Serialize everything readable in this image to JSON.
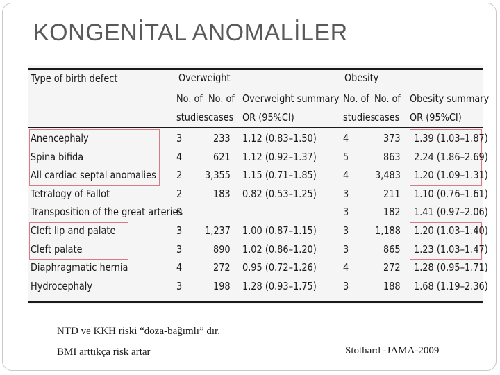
{
  "slide": {
    "title": "KONGENİTAL ANOMALİLER",
    "notes": [
      "NTD ve KKH riski “doza-bağımlı” dır.",
      "BMI arttıkça risk artar"
    ],
    "reference": "Stothard -JAMA-2009"
  },
  "table": {
    "header": {
      "type_label": "Type of birth defect",
      "group_overweight": "Overweight",
      "group_obesity": "Obesity",
      "ow_studies": [
        "No. of",
        "studies"
      ],
      "ow_cases": [
        "No. of",
        "cases"
      ],
      "ow_summary": [
        "Overweight summary",
        "OR (95%CI)"
      ],
      "ob_studies": [
        "No. of",
        "studies"
      ],
      "ob_cases": [
        "No. of",
        "cases"
      ],
      "ob_summary": [
        "Obesity summary",
        "OR (95%CI)"
      ]
    },
    "rows": [
      {
        "defect": "Anencephaly",
        "ow_studies": "3",
        "ow_cases": "233",
        "ow_or": "1.12 (0.83–1.50)",
        "ob_studies": "4",
        "ob_cases": "373",
        "ob_or": "1.39 (1.03–1.87)"
      },
      {
        "defect": "Spina bifida",
        "ow_studies": "4",
        "ow_cases": "621",
        "ow_or": "1.12 (0.92–1.37)",
        "ob_studies": "5",
        "ob_cases": "863",
        "ob_or": "2.24 (1.86–2.69)"
      },
      {
        "defect": "All cardiac septal anomalies",
        "ow_studies": "2",
        "ow_cases": "3,355",
        "ow_or": "1.15 (0.71–1.85)",
        "ob_studies": "4",
        "ob_cases": "3,483",
        "ob_or": "1.20 (1.09–1.31)"
      },
      {
        "defect": "Tetralogy of Fallot",
        "ow_studies": "2",
        "ow_cases": "183",
        "ow_or": "0.82 (0.53–1.25)",
        "ob_studies": "3",
        "ob_cases": "211",
        "ob_or": "1.10 (0.76–1.61)"
      },
      {
        "defect": "Transposition of the great arteries",
        "ow_studies": "0",
        "ow_cases": "",
        "ow_or": "",
        "ob_studies": "3",
        "ob_cases": "182",
        "ob_or": "1.41 (0.97–2.06)"
      },
      {
        "defect": "Cleft lip and palate",
        "ow_studies": "3",
        "ow_cases": "1,237",
        "ow_or": "1.00 (0.87–1.15)",
        "ob_studies": "3",
        "ob_cases": "1,188",
        "ob_or": "1.20 (1.03–1.40)"
      },
      {
        "defect": "Cleft palate",
        "ow_studies": "3",
        "ow_cases": "890",
        "ow_or": "1.02 (0.86–1.20)",
        "ob_studies": "3",
        "ob_cases": "865",
        "ob_or": "1.23 (1.03–1.47)"
      },
      {
        "defect": "Diaphragmatic hernia",
        "ow_studies": "4",
        "ow_cases": "272",
        "ow_or": "0.95 (0.72–1.26)",
        "ob_studies": "4",
        "ob_cases": "272",
        "ob_or": "1.28 (0.95–1.71)"
      },
      {
        "defect": "Hydrocephaly",
        "ow_studies": "3",
        "ow_cases": "198",
        "ow_or": "1.28 (0.93–1.75)",
        "ob_studies": "3",
        "ob_cases": "188",
        "ob_or": "1.68 (1.19–2.36)"
      }
    ]
  },
  "colors": {
    "title": "#595959",
    "highlight_box": "#d97b86",
    "table_background": "#f5f5f5"
  }
}
